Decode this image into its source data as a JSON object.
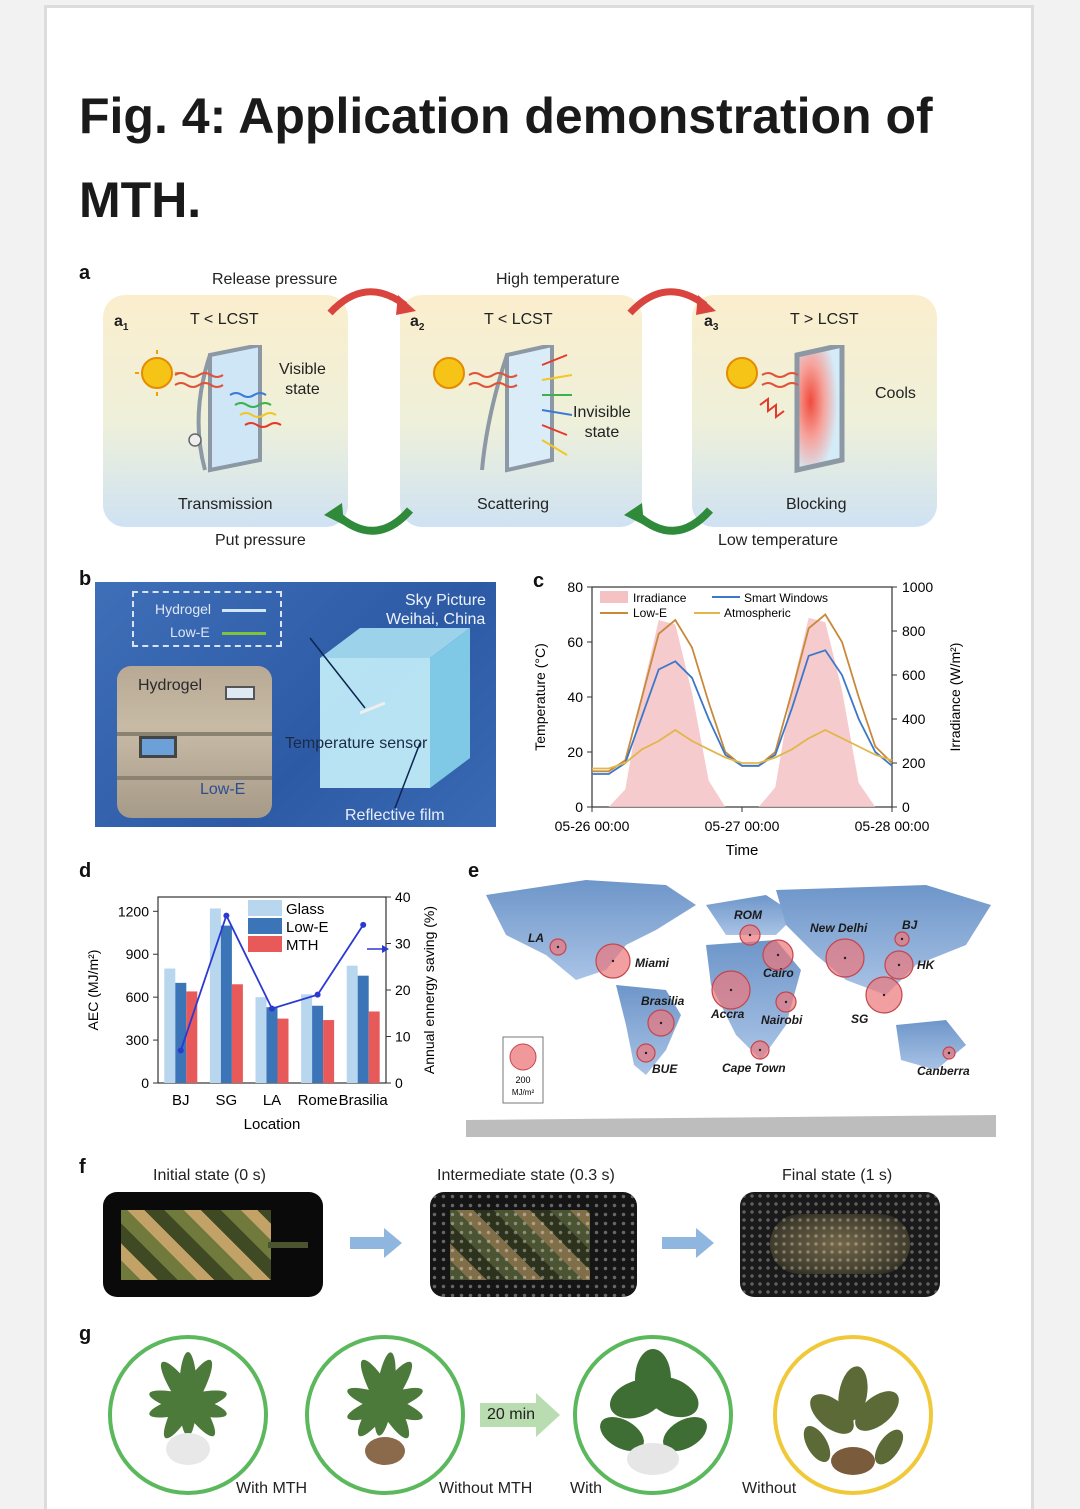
{
  "title": "Fig. 4: Application demonstration of MTH.",
  "panel_a": {
    "label": "a",
    "arrows": {
      "release": "Release pressure",
      "high_temp": "High temperature",
      "put": "Put pressure",
      "low_temp": "Low temperature"
    },
    "sub": [
      {
        "tag": "a",
        "sub": "1",
        "condition": "T < LCST",
        "state": "Visible\nstate",
        "mode": "Transmission"
      },
      {
        "tag": "a",
        "sub": "2",
        "condition": "T < LCST",
        "state": "Invisible\nstate",
        "mode": "Scattering"
      },
      {
        "tag": "a",
        "sub": "3",
        "condition": "T > LCST",
        "state": "Cools",
        "mode": "Blocking"
      }
    ]
  },
  "panel_b": {
    "label": "b",
    "legend_hydrogel": "Hydrogel",
    "legend_lowe": "Low-E",
    "sky": "Sky Picture",
    "location": "Weihai, China",
    "photo_hydrogel": "Hydrogel",
    "photo_lowe": "Low-E",
    "sensor": "Temperature sensor",
    "film": "Reflective film"
  },
  "panel_c": {
    "label": "c",
    "ylabel_left": "Temperature (°C)",
    "ylabel_right": "Irradiance (W/m²)",
    "xlabel": "Time",
    "legend": [
      "Irradiance",
      "Smart Windows",
      "Low-E",
      "Atmospheric"
    ],
    "x_ticks": [
      "05-26 00:00",
      "05-27 00:00",
      "05-28 00:00"
    ],
    "y_left_ticks": [
      "0",
      "20",
      "40",
      "60",
      "80"
    ],
    "y_right_ticks": [
      "0",
      "200",
      "400",
      "600",
      "800",
      "1000"
    ]
  },
  "panel_d": {
    "label": "d",
    "ylabel_left": "AEC (MJ/m²)",
    "ylabel_right": "Annual ennergy saving (%)",
    "xlabel": "Location",
    "legend": [
      "Glass",
      "Low-E",
      "MTH"
    ],
    "y_left_ticks": [
      "0",
      "300",
      "600",
      "900",
      "1200"
    ],
    "y_right_ticks": [
      "0",
      "10",
      "20",
      "30",
      "40"
    ]
  },
  "panel_e": {
    "label": "e",
    "scale_value": "200",
    "scale_unit": "MJ/m²",
    "cities": [
      "LA",
      "Miami",
      "Brasilia",
      "BUE",
      "ROM",
      "Cairo",
      "Accra",
      "Nairobi",
      "Cape Town",
      "New Delhi",
      "BJ",
      "HK",
      "SG",
      "Canberra"
    ]
  },
  "panel_f": {
    "label": "f",
    "states": [
      "Initial state (0 s)",
      "Intermediate state (0.3 s)",
      "Final state (1 s)"
    ]
  },
  "panel_g": {
    "label": "g",
    "time": "20 min",
    "captions": [
      "With MTH",
      "Without MTH",
      "With",
      "Without"
    ]
  },
  "chart_data": [
    {
      "type": "line",
      "title": "",
      "xlabel": "Time",
      "ylabel": "Temperature (°C)",
      "y2label": "Irradiance (W/m²)",
      "x": [
        "05-26 00:00",
        "05-26 04:00",
        "05-26 08:00",
        "05-26 10:00",
        "05-26 12:00",
        "05-26 14:00",
        "05-26 16:00",
        "05-26 18:00",
        "05-26 20:00",
        "05-27 00:00",
        "05-27 04:00",
        "05-27 08:00",
        "05-27 10:00",
        "05-27 12:00",
        "05-27 14:00",
        "05-27 16:00",
        "05-27 18:00",
        "05-27 20:00",
        "05-28 00:00"
      ],
      "ylim": [
        0,
        80
      ],
      "y2lim": [
        0,
        1000
      ],
      "legend_position": "top",
      "series": [
        {
          "name": "Low-E",
          "color": "#c8893a",
          "values": [
            13,
            13,
            17,
            40,
            63,
            68,
            58,
            38,
            20,
            15,
            15,
            20,
            42,
            65,
            70,
            60,
            40,
            22,
            16
          ]
        },
        {
          "name": "Smart Windows",
          "color": "#3c78c8",
          "values": [
            12,
            12,
            16,
            33,
            50,
            53,
            47,
            32,
            19,
            15,
            15,
            19,
            36,
            55,
            57,
            48,
            32,
            20,
            15
          ]
        },
        {
          "name": "Atmospheric",
          "color": "#e2b64a",
          "values": [
            14,
            14,
            16,
            21,
            24,
            28,
            24,
            21,
            18,
            16,
            16,
            18,
            21,
            25,
            28,
            25,
            22,
            19,
            17
          ]
        },
        {
          "name": "Irradiance",
          "color": "#f5c2c4",
          "axis": "right",
          "values": [
            0,
            0,
            80,
            520,
            850,
            830,
            520,
            120,
            0,
            0,
            0,
            90,
            540,
            860,
            840,
            530,
            110,
            0,
            0
          ]
        }
      ]
    },
    {
      "type": "bar",
      "title": "",
      "xlabel": "Location",
      "ylabel": "AEC (MJ/m²)",
      "y2label": "Annual ennergy saving (%)",
      "categories": [
        "BJ",
        "SG",
        "LA",
        "Rome",
        "Brasilia"
      ],
      "ylim": [
        0,
        1300
      ],
      "y2lim": [
        0,
        40
      ],
      "legend_position": "top",
      "series": [
        {
          "name": "Glass",
          "color": "#b9d6ef",
          "values": [
            800,
            1220,
            600,
            620,
            820
          ]
        },
        {
          "name": "Low-E",
          "color": "#3b75b7",
          "values": [
            700,
            1100,
            530,
            540,
            750
          ]
        },
        {
          "name": "MTH",
          "color": "#e85a5a",
          "values": [
            640,
            690,
            450,
            440,
            500
          ]
        },
        {
          "name": "",
          "type": "line",
          "axis": "right",
          "color": "#2a39d1",
          "values": [
            7,
            36,
            16,
            19,
            34
          ]
        }
      ]
    }
  ]
}
